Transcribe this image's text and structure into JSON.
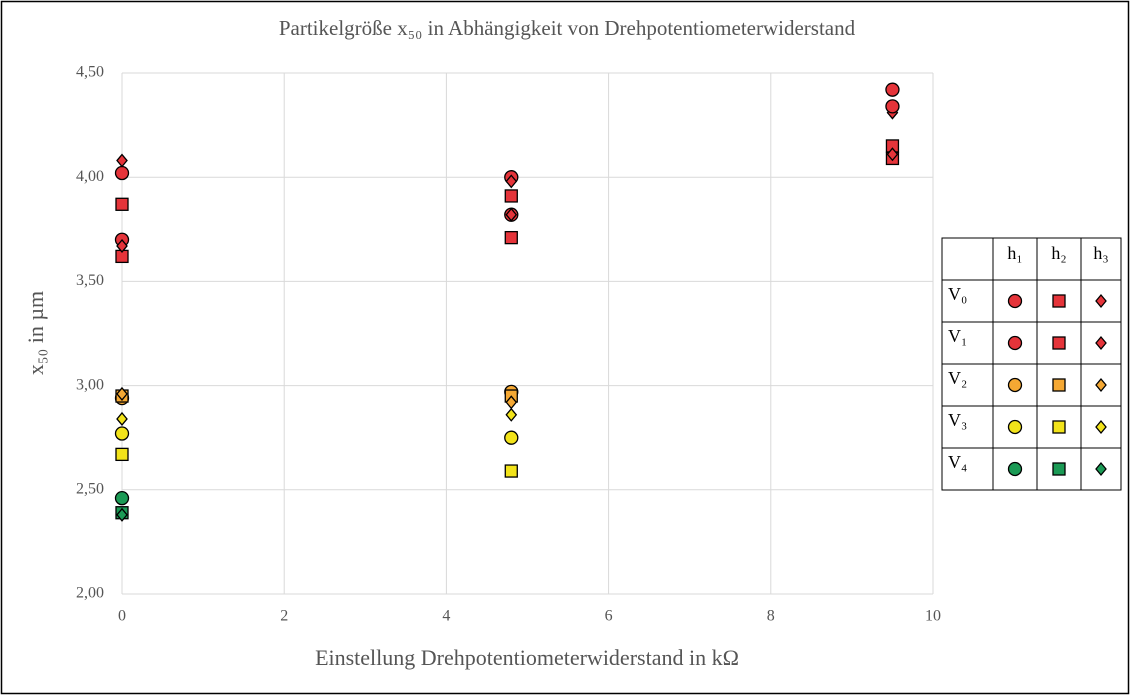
{
  "chart_data": {
    "type": "scatter",
    "title": "Partikelgröße x₅₀ in Abhängigkeit von Drehpotentiometerwiderstand",
    "xlabel": "Einstellung Drehpotentiometerwiderstand in kΩ",
    "ylabel": "x₅₀ in µm",
    "x": [
      0,
      4.8,
      9.5
    ],
    "xlim": [
      0,
      10
    ],
    "xticks": [
      0,
      2,
      4,
      6,
      8,
      10
    ],
    "ylim": [
      2,
      4.5
    ],
    "yticks": [
      {
        "value": 2,
        "label": "2,00"
      },
      {
        "value": 2.5,
        "label": "2,50"
      },
      {
        "value": 3,
        "label": "3,00"
      },
      {
        "value": 3.5,
        "label": "3,50"
      },
      {
        "value": 4,
        "label": "4,00"
      },
      {
        "value": 4.5,
        "label": "4,50"
      }
    ],
    "grid": true,
    "columns": [
      {
        "label": "h₁",
        "marker": "circle"
      },
      {
        "label": "h₂",
        "marker": "square"
      },
      {
        "label": "h₃",
        "marker": "diamond"
      }
    ],
    "groups": [
      {
        "name": "V₀",
        "color": "#e5343a",
        "series": [
          {
            "values": [
              4.02,
              4.0,
              4.42
            ]
          },
          {
            "values": [
              3.87,
              3.91,
              4.15
            ]
          },
          {
            "values": [
              4.08,
              3.98,
              4.31
            ]
          }
        ]
      },
      {
        "name": "V₁",
        "color": "#e5343a",
        "series": [
          {
            "values": [
              3.7,
              3.82,
              4.34
            ]
          },
          {
            "values": [
              3.62,
              3.71,
              4.09
            ]
          },
          {
            "values": [
              3.67,
              3.82,
              4.11
            ]
          }
        ]
      },
      {
        "name": "V₂",
        "color": "#f5a833",
        "series": [
          {
            "values": [
              2.94,
              2.97,
              null
            ]
          },
          {
            "values": [
              2.95,
              2.95,
              null
            ]
          },
          {
            "values": [
              2.96,
              2.92,
              null
            ]
          }
        ]
      },
      {
        "name": "V₃",
        "color": "#f2e31a",
        "series": [
          {
            "values": [
              2.77,
              2.75,
              null
            ]
          },
          {
            "values": [
              2.67,
              2.59,
              null
            ]
          },
          {
            "values": [
              2.84,
              2.86,
              null
            ]
          }
        ]
      },
      {
        "name": "V₄",
        "color": "#1b9a55",
        "series": [
          {
            "values": [
              2.46,
              null,
              null
            ]
          },
          {
            "values": [
              2.39,
              null,
              null
            ]
          },
          {
            "values": [
              2.38,
              null,
              null
            ]
          }
        ]
      }
    ]
  }
}
